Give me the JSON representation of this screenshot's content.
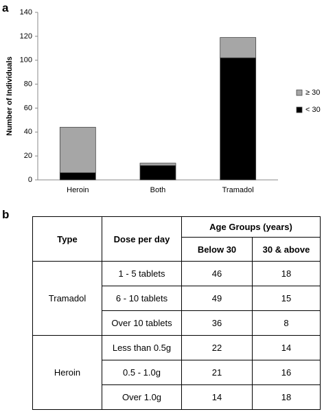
{
  "panel_labels": [
    "a",
    "b"
  ],
  "chart_data": {
    "type": "stacked_bar",
    "y_label": "Number of Individuals",
    "categories": [
      "Heroin",
      "Both",
      "Tramadol"
    ],
    "series": [
      {
        "name": "< 30",
        "color": "#000000",
        "values": [
          6,
          12,
          102
        ]
      },
      {
        "name": "≥ 30",
        "color": "#a6a6a6",
        "values": [
          38,
          2,
          17
        ]
      }
    ],
    "ylim": [
      0,
      140
    ],
    "yticks": [
      0,
      20,
      40,
      60,
      80,
      100,
      120,
      140
    ],
    "grid": false,
    "legend": "right"
  },
  "table": {
    "header": {
      "type": "Type",
      "dose": "Dose per day",
      "age_groups": "Age Groups (years)",
      "subcolumns": [
        "Below 30",
        "30 & above"
      ]
    },
    "groups": [
      {
        "type": "Tramadol",
        "rows": [
          {
            "dose": "1 - 5 tablets",
            "values": [
              46,
              18
            ]
          },
          {
            "dose": "6 - 10 tablets",
            "values": [
              49,
              15
            ]
          },
          {
            "dose": "Over 10 tablets",
            "values": [
              36,
              8
            ]
          }
        ]
      },
      {
        "type": "Heroin",
        "rows": [
          {
            "dose": "Less than 0.5g",
            "values": [
              22,
              14
            ]
          },
          {
            "dose": "0.5 - 1.0g",
            "values": [
              21,
              16
            ]
          },
          {
            "dose": "Over 1.0g",
            "values": [
              14,
              18
            ]
          }
        ]
      }
    ]
  }
}
